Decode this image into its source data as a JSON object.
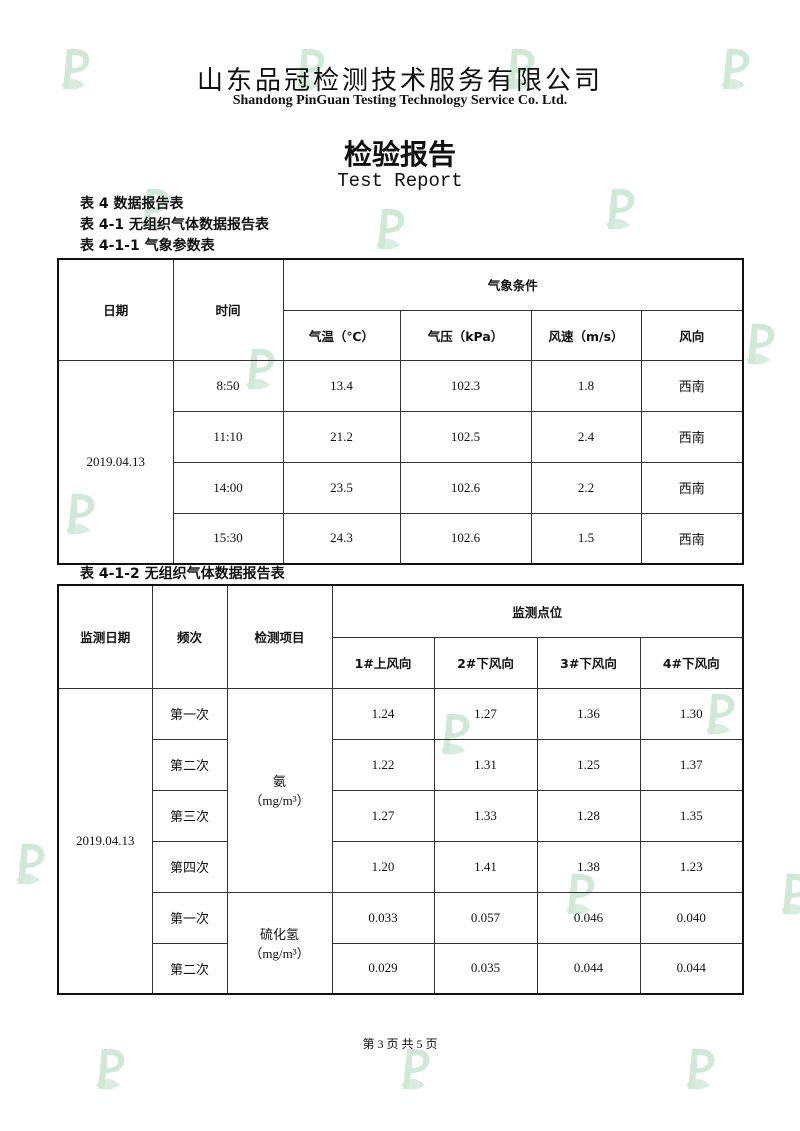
{
  "header": {
    "company_cn": "山东品冠检测技术服务有限公司",
    "company_en": "Shandong PinGuan Testing Technology Service Co. Ltd.",
    "title_cn": "检验报告",
    "title_en": "Test Report"
  },
  "captions": [
    "表 4 数据报告表",
    "表 4-1 无组织气体数据报告表",
    "表 4-1-1 气象参数表",
    "表 4-1-2 无组织气体数据报告表"
  ],
  "table1": {
    "headers": {
      "date": "日期",
      "time": "时间",
      "group": "气象条件",
      "cols": [
        "气温（℃）",
        "气压（kPa）",
        "风速（m/s）",
        "风向"
      ]
    },
    "date": "2019.04.13",
    "rows": [
      {
        "time": "8:50",
        "values": [
          "13.4",
          "102.3",
          "1.8",
          "西南"
        ]
      },
      {
        "time": "11:10",
        "values": [
          "21.2",
          "102.5",
          "2.4",
          "西南"
        ]
      },
      {
        "time": "14:00",
        "values": [
          "23.5",
          "102.6",
          "2.2",
          "西南"
        ]
      },
      {
        "time": "15:30",
        "values": [
          "24.3",
          "102.6",
          "1.5",
          "西南"
        ]
      }
    ]
  },
  "table2": {
    "headers": {
      "date": "监测日期",
      "freq": "频次",
      "item": "检测项目",
      "group": "监测点位",
      "cols": [
        "1#上风向",
        "2#下风向",
        "3#下风向",
        "4#下风向"
      ]
    },
    "date": "2019.04.13",
    "items": [
      {
        "name": "氨",
        "unit": "（mg/m³）"
      },
      {
        "name": "硫化氢",
        "unit": "（mg/m³）"
      }
    ],
    "rows": [
      {
        "freq": "第一次",
        "values": [
          "1.24",
          "1.27",
          "1.36",
          "1.30"
        ]
      },
      {
        "freq": "第二次",
        "values": [
          "1.22",
          "1.31",
          "1.25",
          "1.37"
        ]
      },
      {
        "freq": "第三次",
        "values": [
          "1.27",
          "1.33",
          "1.28",
          "1.35"
        ]
      },
      {
        "freq": "第四次",
        "values": [
          "1.20",
          "1.41",
          "1.38",
          "1.23"
        ]
      },
      {
        "freq": "第一次",
        "values": [
          "0.033",
          "0.057",
          "0.046",
          "0.040"
        ]
      },
      {
        "freq": "第二次",
        "values": [
          "0.029",
          "0.035",
          "0.044",
          "0.044"
        ]
      }
    ]
  },
  "footer": "第 3 页 共 5 页",
  "colors": {
    "watermark": "#cfe9d6",
    "border": "#111111"
  }
}
